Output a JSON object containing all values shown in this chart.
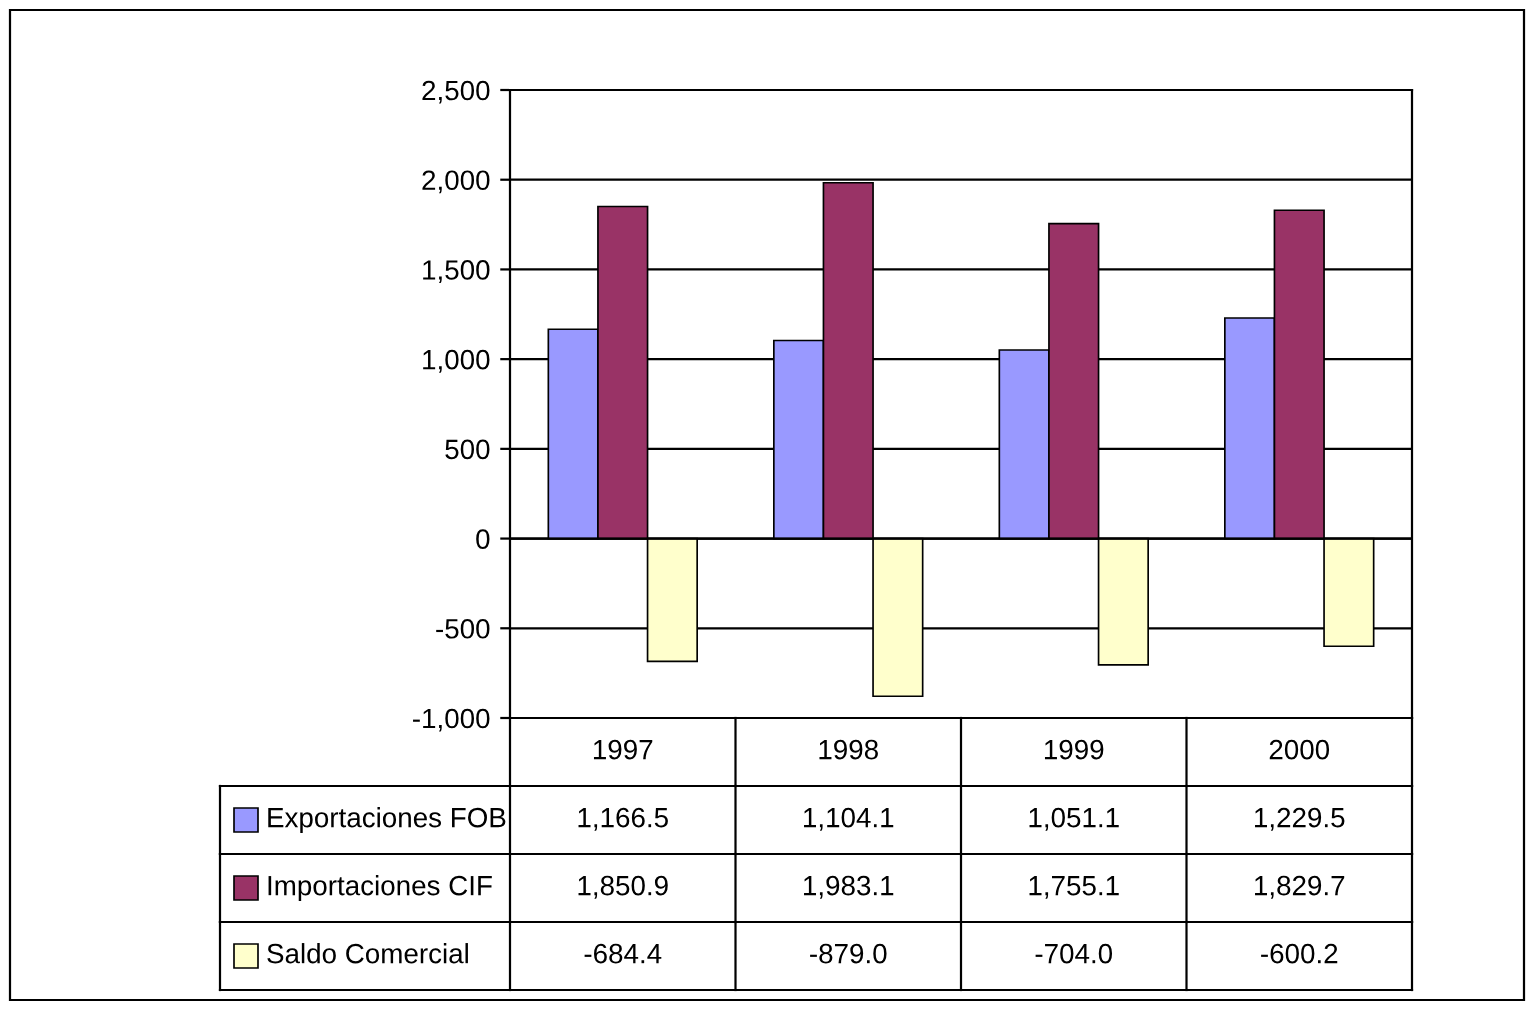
{
  "chart_data": {
    "type": "bar",
    "categories": [
      "1997",
      "1998",
      "1999",
      "2000"
    ],
    "series": [
      {
        "name": "Exportaciones FOB",
        "color": "#9999ff",
        "values": [
          1166.5,
          1104.1,
          1051.1,
          1229.5
        ],
        "value_labels": [
          "1,166.5",
          "1,104.1",
          "1,051.1",
          "1,229.5"
        ]
      },
      {
        "name": "Importaciones CIF",
        "color": "#993366",
        "values": [
          1850.9,
          1983.1,
          1755.1,
          1829.7
        ],
        "value_labels": [
          "1,850.9",
          "1,983.1",
          "1,755.1",
          "1,829.7"
        ]
      },
      {
        "name": "Saldo Comercial",
        "color": "#ffffcc",
        "values": [
          -684.4,
          -879.0,
          -704.0,
          -600.2
        ],
        "value_labels": [
          "-684.4",
          "-879.0",
          "-704.0",
          "-600.2"
        ]
      }
    ],
    "ylim": [
      -1000,
      2500
    ],
    "yticks": [
      {
        "value": -1000,
        "label": "-1,000"
      },
      {
        "value": -500,
        "label": "-500"
      },
      0,
      {
        "value": 500,
        "label": "500"
      },
      {
        "value": 1000,
        "label": "1,000"
      },
      {
        "value": 1500,
        "label": "1,500"
      },
      {
        "value": 2000,
        "label": "2,000"
      },
      {
        "value": 2500,
        "label": "2,500"
      }
    ],
    "grid": "y",
    "legend": "bottom"
  }
}
